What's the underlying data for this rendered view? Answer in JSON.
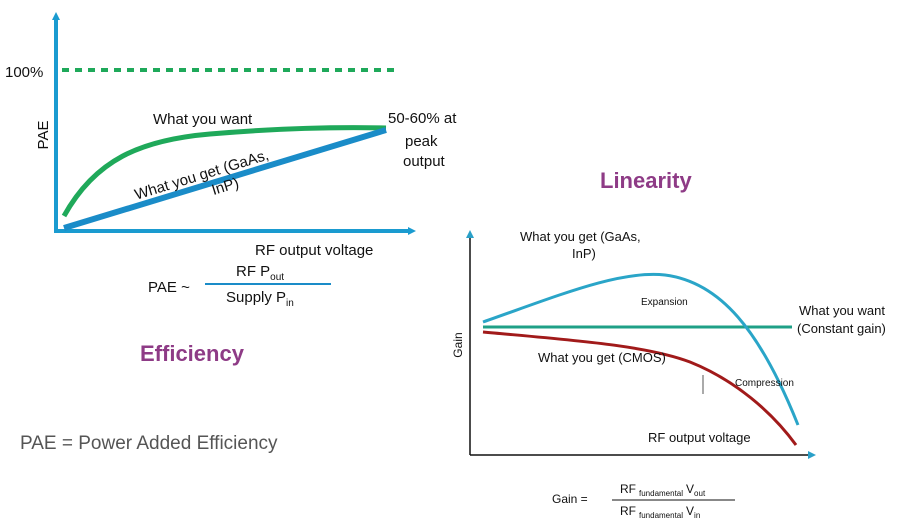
{
  "efficiency_panel": {
    "title": "Efficiency",
    "y_axis_label": "PAE",
    "x_axis_label": "RF output voltage",
    "reference_label": "100%",
    "want_label": "What you want",
    "get_label": [
      "What you get (GaAs,",
      "InP)"
    ],
    "peak_note": [
      "50-60% at",
      "peak",
      "output"
    ],
    "formula": {
      "lhs": "PAE ~",
      "numerator": [
        "RF P",
        "out"
      ],
      "denominator": [
        "Supply P",
        "in"
      ]
    },
    "definition": "PAE = Power Added Efficiency"
  },
  "linearity_panel": {
    "title": "Linearity",
    "y_axis_label": "Gain",
    "x_axis_label": "RF output voltage",
    "gaas_label": [
      "What you get (GaAs,",
      "InP)"
    ],
    "expansion_label": "Expansion",
    "want_label": [
      "What you want",
      "(Constant gain)"
    ],
    "cmos_label": "What you get (CMOS)",
    "compression_label": "Compression",
    "formula": {
      "lhs": "Gain =",
      "numerator": [
        "RF",
        "fundamental",
        "V",
        "out"
      ],
      "denominator": [
        "RF",
        "fundamental",
        "V",
        "in"
      ]
    }
  }
}
